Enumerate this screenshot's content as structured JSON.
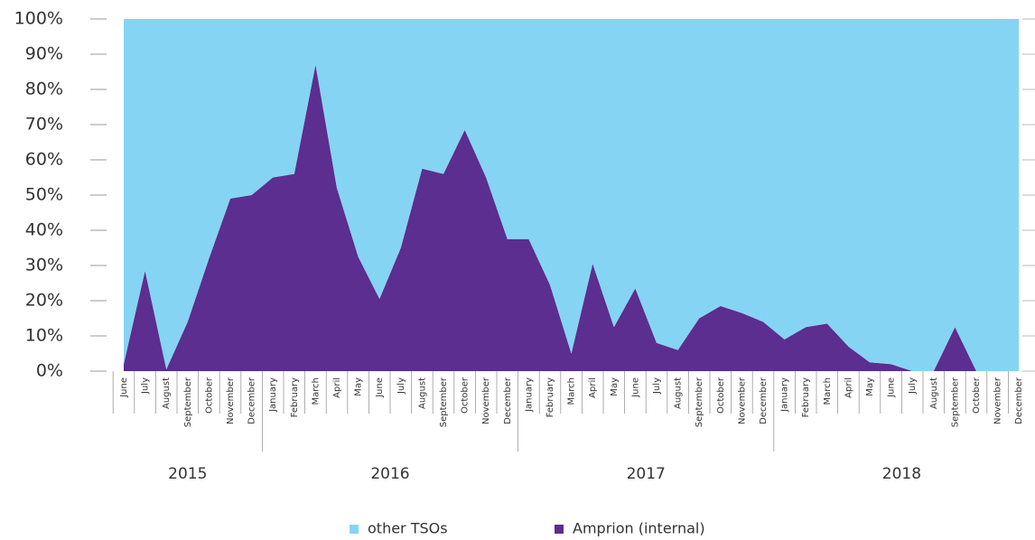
{
  "chart_data": {
    "type": "stacked-area",
    "groups": [
      {
        "label": "2015",
        "months": [
          "June",
          "July",
          "August",
          "September",
          "October",
          "November",
          "December"
        ]
      },
      {
        "label": "2016",
        "months": [
          "January",
          "February",
          "March",
          "April",
          "May",
          "June",
          "July",
          "August",
          "September",
          "October",
          "November",
          "December"
        ]
      },
      {
        "label": "2017",
        "months": [
          "January",
          "February",
          "March",
          "April",
          "May",
          "June",
          "July",
          "August",
          "September",
          "October",
          "November",
          "December"
        ]
      },
      {
        "label": "2018",
        "months": [
          "January",
          "February",
          "March",
          "April",
          "May",
          "June",
          "July",
          "August",
          "September",
          "October",
          "November",
          "December"
        ]
      }
    ],
    "series": [
      {
        "name": "other TSOs",
        "color": "#86d4f4",
        "values": [
          98,
          71.5,
          99.5,
          86,
          68,
          51,
          50,
          45,
          44,
          13,
          48,
          67.5,
          79.5,
          65,
          42.5,
          44,
          31.5,
          45,
          62.5,
          62.5,
          75.5,
          95,
          69.5,
          87.5,
          76.5,
          92,
          94,
          85,
          81.5,
          83.5,
          86,
          91,
          87.5,
          86.5,
          93,
          97.5,
          98,
          100,
          100,
          87.5,
          100,
          100,
          100
        ]
      },
      {
        "name": "Amprion (internal)",
        "color": "#5b2e8f",
        "values": [
          2,
          28.5,
          0.5,
          14,
          32,
          49,
          50,
          55,
          56,
          87,
          52,
          32.5,
          20.5,
          35,
          57.5,
          56,
          68.5,
          55,
          37.5,
          37.5,
          24.5,
          5,
          30.5,
          12.5,
          23.5,
          8,
          6,
          15,
          18.5,
          16.5,
          14,
          9,
          12.5,
          13.5,
          7,
          2.5,
          2,
          0,
          0,
          12.5,
          0,
          0,
          0
        ]
      }
    ],
    "ylim": [
      0,
      100
    ],
    "yticks": [
      {
        "value": 0,
        "label": "0%"
      },
      {
        "value": 10,
        "label": "10%"
      },
      {
        "value": 20,
        "label": "20%"
      },
      {
        "value": 30,
        "label": "30%"
      },
      {
        "value": 40,
        "label": "40%"
      },
      {
        "value": 50,
        "label": "50%"
      },
      {
        "value": 60,
        "label": "60%"
      },
      {
        "value": 70,
        "label": "70%"
      },
      {
        "value": 80,
        "label": "80%"
      },
      {
        "value": 90,
        "label": "90%"
      },
      {
        "value": 100,
        "label": "100%"
      }
    ]
  }
}
